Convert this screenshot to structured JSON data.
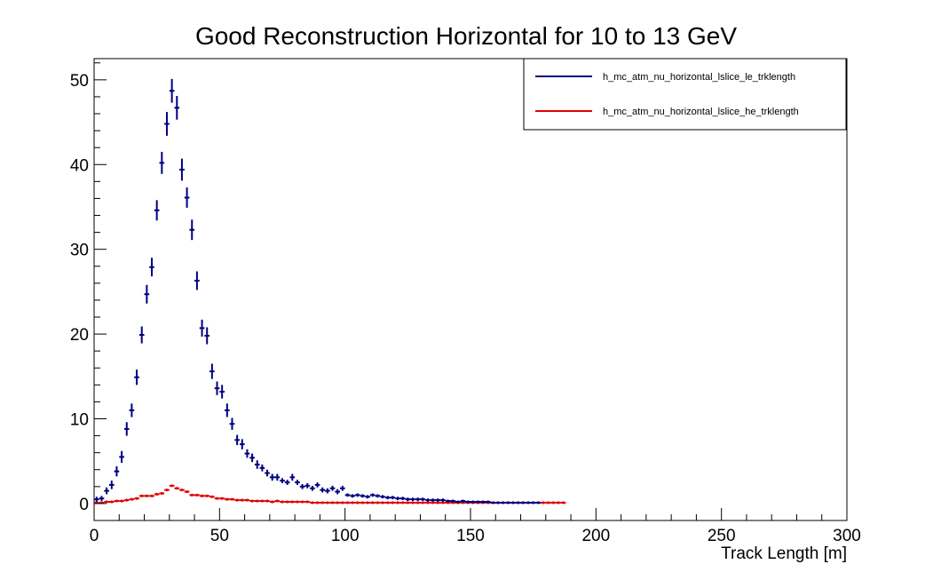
{
  "chart_data": {
    "type": "scatter",
    "title": "Good Reconstruction Horizontal for 10 to 13 GeV",
    "xlabel": "Track Length [m]",
    "ylabel": "",
    "xlim": [
      0,
      300
    ],
    "ylim": [
      -2,
      52.5
    ],
    "xticks": [
      "0",
      "50",
      "100",
      "150",
      "200",
      "250",
      "300"
    ],
    "yticks": [
      "0",
      "10",
      "20",
      "30",
      "40",
      "50"
    ],
    "bin_width": 2,
    "grid": false,
    "legend_position": "top-right",
    "series": [
      {
        "name": "h_mc_atm_nu_horizontal_lslice_le_trklength",
        "color": "#000080",
        "x": [
          1,
          3,
          5,
          7,
          9,
          11,
          13,
          15,
          17,
          19,
          21,
          23,
          25,
          27,
          29,
          31,
          33,
          35,
          37,
          39,
          41,
          43,
          45,
          47,
          49,
          51,
          53,
          55,
          57,
          59,
          61,
          63,
          65,
          67,
          69,
          71,
          73,
          75,
          77,
          79,
          81,
          83,
          85,
          87,
          89,
          91,
          93,
          95,
          97,
          99,
          101,
          103,
          105,
          107,
          109,
          111,
          113,
          115,
          117,
          119,
          121,
          123,
          125,
          127,
          129,
          131,
          133,
          135,
          137,
          139,
          141,
          143,
          145,
          147,
          149,
          151,
          153,
          155,
          157,
          159,
          161,
          163,
          165,
          167,
          169,
          171,
          173,
          175,
          177
        ],
        "y": [
          0.5,
          0.6,
          1.5,
          2.2,
          3.8,
          5.5,
          8.8,
          11.0,
          14.9,
          19.9,
          24.7,
          27.9,
          34.6,
          40.2,
          44.8,
          48.7,
          46.7,
          39.4,
          36.1,
          32.3,
          26.3,
          20.7,
          19.8,
          15.6,
          13.6,
          13.2,
          11.0,
          9.4,
          7.5,
          7.0,
          5.9,
          5.4,
          4.6,
          4.2,
          3.6,
          3.1,
          3.1,
          2.7,
          2.5,
          3.1,
          2.5,
          2.0,
          2.1,
          1.8,
          2.2,
          1.6,
          1.5,
          1.8,
          1.4,
          1.8,
          1.0,
          0.9,
          1.0,
          0.9,
          0.8,
          1.0,
          0.9,
          0.8,
          0.7,
          0.7,
          0.6,
          0.6,
          0.5,
          0.5,
          0.5,
          0.5,
          0.4,
          0.4,
          0.4,
          0.4,
          0.3,
          0.3,
          0.2,
          0.3,
          0.2,
          0.2,
          0.2,
          0.2,
          0.2,
          0.1,
          0.1,
          0.1,
          0.1,
          0.1,
          0.1,
          0.1,
          0.1,
          0.1,
          0.1
        ],
        "err": [
          0.3,
          0.3,
          0.4,
          0.5,
          0.6,
          0.7,
          0.8,
          0.8,
          0.9,
          1.0,
          1.1,
          1.1,
          1.2,
          1.3,
          1.4,
          1.4,
          1.4,
          1.3,
          1.2,
          1.2,
          1.1,
          1.0,
          1.0,
          0.9,
          0.8,
          0.8,
          0.8,
          0.7,
          0.6,
          0.6,
          0.5,
          0.5,
          0.5,
          0.4,
          0.4,
          0.4,
          0.4,
          0.3,
          0.3,
          0.4,
          0.3,
          0.3,
          0.3,
          0.3,
          0.3,
          0.3,
          0.3,
          0.3,
          0.3,
          0.3,
          0.2,
          0.2,
          0.2,
          0.2,
          0.2,
          0.2,
          0.2,
          0.2,
          0.2,
          0.2,
          0.2,
          0.2,
          0.2,
          0.2,
          0.2,
          0.2,
          0.2,
          0.2,
          0.2,
          0.2,
          0.1,
          0.1,
          0.1,
          0.1,
          0.1,
          0.1,
          0.1,
          0.1,
          0.1,
          0.1,
          0.1,
          0.1,
          0.1,
          0.1,
          0.1,
          0.1,
          0.1,
          0.1,
          0.1
        ]
      },
      {
        "name": "h_mc_atm_nu_horizontal_lslice_he_trklength",
        "color": "#e00000",
        "x": [
          1,
          3,
          5,
          7,
          9,
          11,
          13,
          15,
          17,
          19,
          21,
          23,
          25,
          27,
          29,
          31,
          33,
          35,
          37,
          39,
          41,
          43,
          45,
          47,
          49,
          51,
          53,
          55,
          57,
          59,
          61,
          63,
          65,
          67,
          69,
          71,
          73,
          75,
          77,
          79,
          81,
          83,
          85,
          87,
          89,
          91,
          93,
          95,
          97,
          99,
          101,
          103,
          105,
          107,
          109,
          111,
          113,
          115,
          117,
          119,
          121,
          123,
          125,
          127,
          129,
          131,
          133,
          135,
          137,
          139,
          141,
          143,
          145,
          147,
          149,
          151,
          153,
          155,
          157,
          159,
          161,
          163,
          165,
          167,
          169,
          171,
          173,
          175,
          177,
          179,
          181,
          183,
          185,
          187
        ],
        "y": [
          0.1,
          0.1,
          0.2,
          0.2,
          0.3,
          0.3,
          0.4,
          0.5,
          0.6,
          0.9,
          0.9,
          0.9,
          1.1,
          1.2,
          1.6,
          2.1,
          1.8,
          1.6,
          1.4,
          1.0,
          1.0,
          0.9,
          0.9,
          0.8,
          0.6,
          0.6,
          0.5,
          0.5,
          0.4,
          0.4,
          0.4,
          0.3,
          0.3,
          0.3,
          0.3,
          0.2,
          0.3,
          0.2,
          0.2,
          0.2,
          0.2,
          0.2,
          0.2,
          0.1,
          0.1,
          0.1,
          0.1,
          0.1,
          0.1,
          0.1,
          0.1,
          0.1,
          0.1,
          0.1,
          0.1,
          0.1,
          0.1,
          0.1,
          0.1,
          0.1,
          0.1,
          0.1,
          0.1,
          0.1,
          0.1,
          0.1,
          0.1,
          0.1,
          0.1,
          0.1,
          0.1,
          0.1,
          0.1,
          0.1,
          0.1,
          0.1,
          0.1,
          0.1,
          0.1,
          0.1,
          0.1,
          0.1,
          0.1,
          0.1,
          0.1,
          0.1,
          0.1,
          0.1,
          0.1,
          0.1,
          0.1,
          0.1,
          0.1,
          0.1
        ],
        "err": [
          0.05,
          0.05,
          0.05,
          0.05,
          0.05,
          0.05,
          0.05,
          0.05,
          0.05,
          0.1,
          0.1,
          0.1,
          0.1,
          0.1,
          0.15,
          0.15,
          0.15,
          0.15,
          0.1,
          0.1,
          0.1,
          0.1,
          0.1,
          0.1,
          0.05,
          0.05,
          0.05,
          0.05,
          0.05,
          0.05,
          0.05,
          0.05,
          0.05,
          0.05,
          0.05,
          0.05,
          0.05,
          0.05,
          0.05,
          0.05,
          0.05,
          0.05,
          0.05,
          0.05,
          0.05,
          0.05,
          0.05,
          0.05,
          0.05,
          0.05,
          0.05,
          0.05,
          0.05,
          0.05,
          0.05,
          0.05,
          0.05,
          0.05,
          0.05,
          0.05,
          0.05,
          0.05,
          0.05,
          0.05,
          0.05,
          0.05,
          0.05,
          0.05,
          0.05,
          0.05,
          0.05,
          0.05,
          0.05,
          0.05,
          0.05,
          0.05,
          0.05,
          0.05,
          0.05,
          0.05,
          0.05,
          0.05,
          0.05,
          0.05,
          0.05,
          0.05,
          0.05,
          0.05,
          0.05,
          0.05,
          0.05,
          0.05,
          0.05,
          0.05
        ]
      }
    ]
  }
}
